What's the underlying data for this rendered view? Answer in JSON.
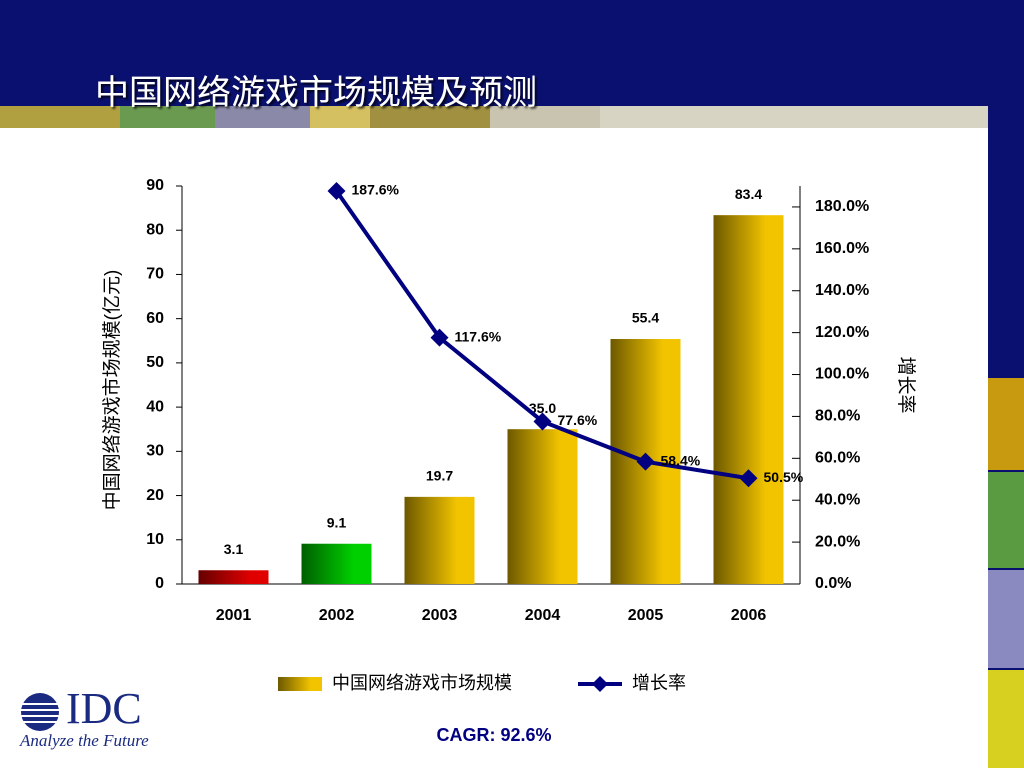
{
  "title": "中国网络游戏市场规模及预测",
  "chart_data": {
    "type": "bar",
    "categories": [
      "2001",
      "2002",
      "2003",
      "2004",
      "2005",
      "2006"
    ],
    "y_label": "中国网络游戏市场规模(亿元)",
    "y2_label": "增长率",
    "ylim": [
      0,
      90
    ],
    "yticks": [
      0,
      10,
      20,
      30,
      40,
      50,
      60,
      70,
      80,
      90
    ],
    "y2lim": [
      0,
      190
    ],
    "y2ticks": [
      {
        "value": 0,
        "label": "0.0%"
      },
      {
        "value": 20,
        "label": "20.0%"
      },
      {
        "value": 40,
        "label": "40.0%"
      },
      {
        "value": 60,
        "label": "60.0%"
      },
      {
        "value": 80,
        "label": "80.0%"
      },
      {
        "value": 100,
        "label": "100.0%"
      },
      {
        "value": 120,
        "label": "120.0%"
      },
      {
        "value": 140,
        "label": "140.0%"
      },
      {
        "value": 160,
        "label": "160.0%"
      },
      {
        "value": 180,
        "label": "180.0%"
      }
    ],
    "series": [
      {
        "name": "中国网络游戏市场规模",
        "type": "bar",
        "color": "#f2c400",
        "colors": [
          "#e00000",
          "#00d000",
          "#f2c400",
          "#f2c400",
          "#f2c400",
          "#f2c400"
        ],
        "values": [
          3.1,
          9.1,
          19.7,
          35.0,
          55.4,
          83.4
        ],
        "value_labels": [
          "3.1",
          "9.1",
          "19.7",
          "35.0",
          "55.4",
          "83.4"
        ]
      },
      {
        "name": "增长率",
        "type": "line",
        "axis": "y2",
        "color": "#000080",
        "values": [
          null,
          187.6,
          117.6,
          77.6,
          58.4,
          50.5
        ],
        "value_labels": [
          null,
          "187.6%",
          "117.6%",
          "77.6%",
          "58.4%",
          "50.5%"
        ]
      }
    ],
    "legend": "bottom",
    "annotation": "CAGR: 92.6%"
  },
  "logo": {
    "name": "IDC",
    "tagline": "Analyze the Future"
  }
}
